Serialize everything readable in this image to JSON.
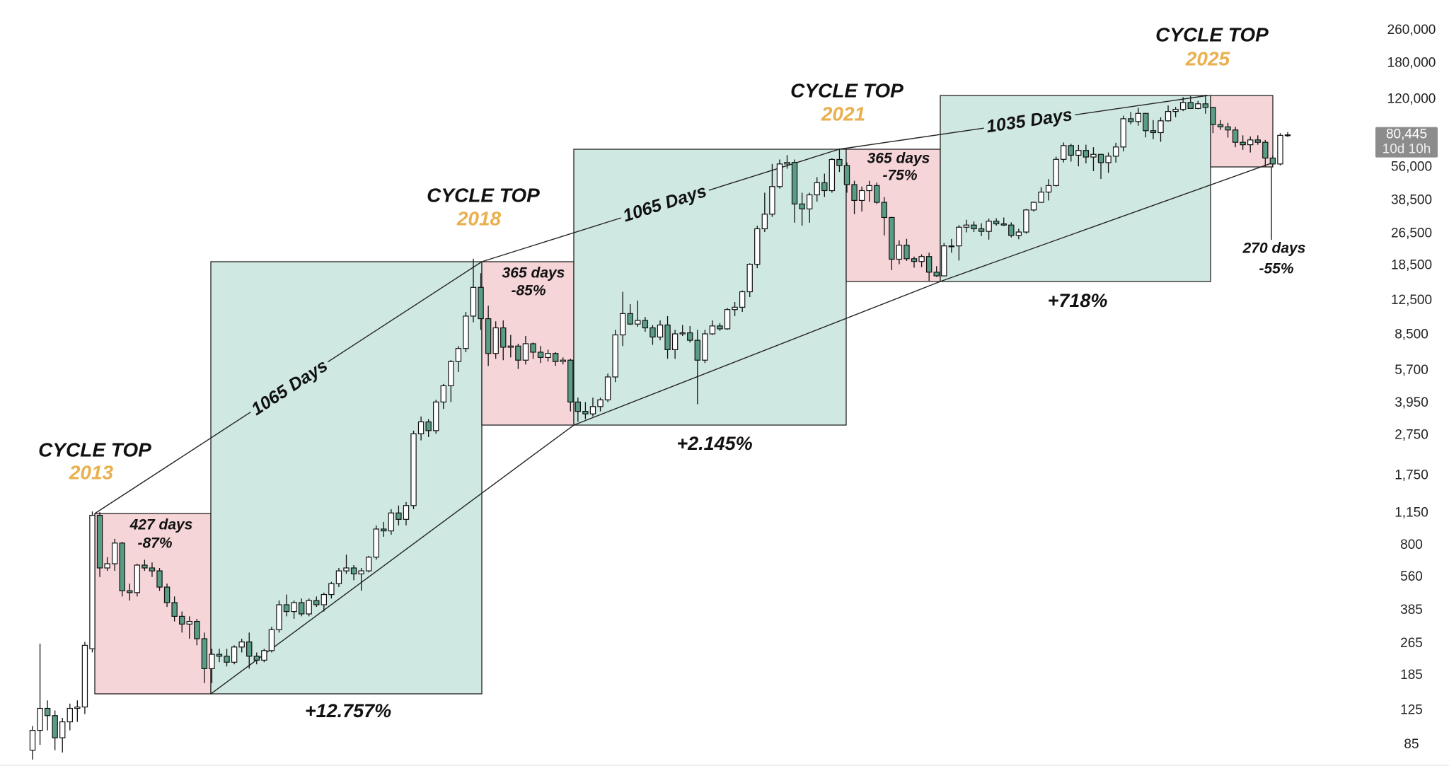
{
  "chart_data": {
    "type": "candlestick",
    "log_scale": true,
    "grid": false,
    "up_color": "#ffffff",
    "down_color": "#5a9c86",
    "ylim": [
      67,
      366000
    ],
    "yticks": [
      {
        "value": 260000,
        "label": "260,000"
      },
      {
        "value": 180000,
        "label": "180,000"
      },
      {
        "value": 120000,
        "label": "120,000"
      },
      {
        "value": 56000,
        "label": "56,000"
      },
      {
        "value": 38500,
        "label": "38,500"
      },
      {
        "value": 26500,
        "label": "26,500"
      },
      {
        "value": 18500,
        "label": "18,500"
      },
      {
        "value": 12500,
        "label": "12,500"
      },
      {
        "value": 8500,
        "label": "8,500"
      },
      {
        "value": 5700,
        "label": "5,700"
      },
      {
        "value": 3950,
        "label": "3,950"
      },
      {
        "value": 2750,
        "label": "2,750"
      },
      {
        "value": 1750,
        "label": "1,750"
      },
      {
        "value": 1150,
        "label": "1,150"
      },
      800,
      560,
      385,
      265,
      185,
      125,
      85
    ],
    "last_price": {
      "value": 80445,
      "label": "80,445"
    },
    "countdown": "10d 10h",
    "open": [
      80,
      100,
      128,
      118,
      92,
      110,
      128,
      130,
      250,
      1120,
      620,
      650,
      820,
      480,
      470,
      640,
      620,
      600,
      500,
      420,
      360,
      330,
      340,
      280,
      200,
      235,
      230,
      215,
      255,
      270,
      230,
      220,
      245,
      310,
      410,
      380,
      420,
      370,
      430,
      410,
      460,
      520,
      600,
      620,
      580,
      600,
      700,
      960,
      940,
      1150,
      1070,
      1250,
      2800,
      3200,
      2900,
      4000,
      4800,
      6300,
      7300,
      10500,
      14500,
      10200,
      6900,
      9200,
      7400,
      7500,
      6400,
      7700,
      7000,
      6600,
      6900,
      6300,
      6400,
      4000,
      3600,
      3500,
      3800,
      4100,
      5300,
      8500,
      10800,
      9600,
      10000,
      9200,
      8300,
      9500,
      7200,
      8600,
      8700,
      8000,
      6400,
      8600,
      9400,
      9100,
      11300,
      11600,
      13800,
      18800,
      28000,
      33000,
      45000,
      58000,
      59000,
      37000,
      35000,
      41000,
      47000,
      43000,
      61000,
      57000,
      46000,
      38500,
      43000,
      45500,
      37700,
      31800,
      19900,
      23300,
      20000,
      19400,
      20500,
      17200,
      16500,
      23100,
      23100,
      28500,
      29200,
      28000,
      27200,
      30500,
      29600,
      29200,
      26000,
      27000,
      34600,
      37700,
      42300,
      45500,
      61100,
      71300,
      64000,
      67500,
      62700,
      64600,
      58900,
      63300,
      70200,
      96400,
      93400,
      102400,
      84300,
      82500,
      94200,
      104600,
      107100,
      115700,
      108200,
      114000,
      109500,
      90300,
      88000,
      85000,
      74000,
      72000,
      76000,
      74000,
      62000,
      58000,
      80000
    ],
    "high": [
      105,
      265,
      140,
      125,
      115,
      135,
      140,
      270,
      1170,
      1160,
      700,
      860,
      830,
      520,
      650,
      680,
      660,
      620,
      520,
      450,
      380,
      360,
      350,
      300,
      250,
      250,
      250,
      260,
      280,
      300,
      240,
      250,
      320,
      430,
      460,
      430,
      440,
      440,
      450,
      470,
      530,
      620,
      720,
      640,
      620,
      710,
      1000,
      1040,
      1200,
      1250,
      1300,
      2900,
      3400,
      3300,
      4100,
      4900,
      6400,
      7500,
      11000,
      20000,
      17000,
      11800,
      9900,
      10000,
      8500,
      7700,
      8400,
      7800,
      7500,
      7200,
      7000,
      6600,
      6500,
      4200,
      4000,
      4200,
      4200,
      5500,
      9000,
      13800,
      12000,
      12500,
      10400,
      9500,
      10000,
      10500,
      9000,
      9500,
      9400,
      9000,
      9000,
      10000,
      9700,
      11500,
      12300,
      14000,
      19000,
      29000,
      42000,
      58000,
      61000,
      64000,
      61000,
      42000,
      42000,
      50000,
      52000,
      62000,
      69000,
      59000,
      48000,
      45000,
      48000,
      47000,
      40000,
      32000,
      24600,
      25000,
      20500,
      21000,
      21400,
      18400,
      23900,
      25000,
      29200,
      31000,
      30400,
      29800,
      31400,
      31500,
      31800,
      30100,
      28000,
      35000,
      38000,
      44700,
      48900,
      63000,
      73800,
      72700,
      71900,
      72000,
      70000,
      65000,
      66000,
      73600,
      99800,
      104000,
      109000,
      102700,
      95000,
      97900,
      111900,
      110000,
      123000,
      124400,
      117900,
      126200,
      110000,
      95000,
      92000,
      88000,
      80000,
      79000,
      80000,
      76000,
      64000,
      82000,
      83000
    ],
    "low": [
      72,
      85,
      100,
      80,
      78,
      100,
      110,
      120,
      240,
      560,
      600,
      600,
      450,
      430,
      450,
      600,
      560,
      480,
      400,
      340,
      300,
      280,
      260,
      170,
      170,
      215,
      205,
      210,
      240,
      200,
      210,
      215,
      240,
      300,
      360,
      350,
      360,
      360,
      400,
      380,
      440,
      500,
      580,
      540,
      480,
      590,
      680,
      880,
      900,
      1000,
      1000,
      1200,
      2600,
      2700,
      2800,
      3700,
      4000,
      5600,
      7000,
      9800,
      9000,
      6000,
      6500,
      6400,
      6600,
      5800,
      6100,
      6500,
      6200,
      6300,
      6000,
      6100,
      3600,
      3200,
      3300,
      3400,
      3600,
      4000,
      5000,
      7500,
      9500,
      9300,
      8800,
      7600,
      8000,
      6500,
      6500,
      8400,
      7800,
      3900,
      6200,
      8500,
      8900,
      9000,
      10500,
      11000,
      13000,
      18000,
      27000,
      32000,
      44000,
      55000,
      30000,
      29000,
      30000,
      38000,
      40000,
      42000,
      53000,
      42000,
      33000,
      34000,
      38000,
      37000,
      26000,
      17600,
      18800,
      19500,
      18100,
      18200,
      15600,
      16300,
      16500,
      21400,
      19600,
      26900,
      27000,
      25800,
      24800,
      29000,
      28900,
      25400,
      24900,
      26500,
      34000,
      37500,
      38500,
      45000,
      59000,
      59600,
      56500,
      58400,
      53500,
      49000,
      52500,
      58900,
      66800,
      90500,
      89200,
      78200,
      76600,
      74400,
      93400,
      98200,
      105000,
      108000,
      107300,
      102000,
      82000,
      85000,
      78000,
      70000,
      68000,
      66000,
      72000,
      56000,
      56000,
      57000,
      78500
    ],
    "close": [
      100,
      128,
      118,
      92,
      110,
      128,
      130,
      260,
      1120,
      620,
      650,
      820,
      480,
      470,
      640,
      620,
      600,
      500,
      420,
      360,
      330,
      340,
      280,
      200,
      235,
      230,
      215,
      255,
      270,
      230,
      220,
      245,
      310,
      410,
      380,
      420,
      370,
      430,
      410,
      460,
      520,
      600,
      620,
      580,
      600,
      700,
      960,
      940,
      1150,
      1070,
      1250,
      2800,
      3200,
      2900,
      4000,
      4800,
      6300,
      7300,
      10500,
      14500,
      10200,
      6900,
      9200,
      7400,
      7500,
      6400,
      7700,
      7000,
      6600,
      6900,
      6300,
      6400,
      4000,
      3600,
      3500,
      3800,
      4100,
      5300,
      8500,
      10800,
      9600,
      10000,
      9200,
      8300,
      9500,
      7200,
      8600,
      8700,
      8000,
      6400,
      8600,
      9400,
      9100,
      11300,
      11600,
      13800,
      18800,
      28000,
      33000,
      45000,
      58000,
      59000,
      37000,
      35000,
      41000,
      47000,
      43000,
      61000,
      57000,
      46000,
      38500,
      43000,
      45500,
      37700,
      31800,
      19900,
      23300,
      20000,
      19400,
      20500,
      17200,
      16500,
      23100,
      23100,
      28500,
      29200,
      28000,
      27200,
      30500,
      29600,
      29200,
      26000,
      27000,
      34600,
      37700,
      42300,
      45500,
      61100,
      71300,
      64000,
      67500,
      62700,
      64600,
      58900,
      63300,
      70200,
      96400,
      93400,
      102400,
      84300,
      82500,
      94200,
      104600,
      107100,
      115700,
      108200,
      114000,
      109500,
      90300,
      88000,
      85000,
      74000,
      72000,
      76000,
      74000,
      62000,
      58000,
      80000,
      80445
    ],
    "annotations": {
      "cycle_tops": [
        {
          "label": "CYCLE TOP",
          "year": "2013"
        },
        {
          "label": "CYCLE TOP",
          "year": "2018"
        },
        {
          "label": "CYCLE TOP",
          "year": "2021"
        },
        {
          "label": "CYCLE TOP",
          "year": "2025"
        }
      ],
      "drawdowns": [
        {
          "days": "427 days",
          "change": "-87%"
        },
        {
          "days": "365 days",
          "change": "-85%"
        },
        {
          "days": "365 days",
          "change": "-75%"
        },
        {
          "days": "270 days",
          "change": "-55%"
        }
      ],
      "gains": [
        "+12.757%",
        "+2.145%",
        "+718%"
      ],
      "durations": [
        "1065 Days",
        "1065 Days",
        "1035 Days"
      ]
    }
  }
}
